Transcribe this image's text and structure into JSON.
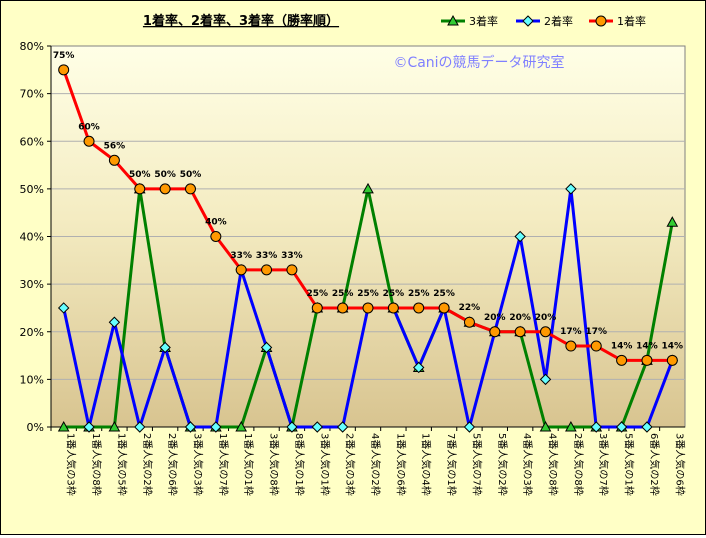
{
  "chart_data": {
    "type": "line",
    "title": "1着率、2着率、3着率（勝率順）",
    "watermark": "©Caniの競馬データ研究室",
    "ylim": [
      0,
      80
    ],
    "y_ticks": [
      "0%",
      "10%",
      "20%",
      "30%",
      "40%",
      "50%",
      "60%",
      "70%",
      "80%"
    ],
    "categories": [
      "1番人気の3枠",
      "1番人気の8枠",
      "1番人気の5枠",
      "2番人気の2枠",
      "2番人気の6枠",
      "3番人気の3枠",
      "1番人気の7枠",
      "1番人気の1枠",
      "3番人気の8枠",
      "8番人気の1枠",
      "3番人気の1枠",
      "2番人気の3枠",
      "4番人気の2枠",
      "1番人気の6枠",
      "1番人気の4枠",
      "7番人気の1枠",
      "5番人気の7枠",
      "5番人気の2枠",
      "4番人気の3枠",
      "4番人気の8枠",
      "2番人気の8枠",
      "3番人気の7枠",
      "5番人気の1枠",
      "6番人気の2枠",
      "3番人気の6枠"
    ],
    "series": [
      {
        "name": "3着率",
        "color": "#008000",
        "marker": "triangle",
        "fill": "#33CC33",
        "values": [
          0,
          0,
          0,
          50,
          16.7,
          0,
          0,
          0,
          16.7,
          0,
          25,
          25,
          50,
          25,
          12.5,
          25,
          22,
          20,
          20,
          0,
          0,
          0,
          0,
          14,
          43
        ]
      },
      {
        "name": "2着率",
        "color": "#0000FF",
        "marker": "diamond",
        "fill": "#66FFFF",
        "values": [
          25,
          0,
          22,
          0,
          16.7,
          0,
          0,
          33,
          16.7,
          0,
          0,
          0,
          25,
          25,
          12.5,
          25,
          0,
          20,
          40,
          10,
          50,
          0,
          0,
          0,
          14
        ]
      },
      {
        "name": "1着率",
        "color": "#FF0000",
        "marker": "circle",
        "fill": "#FF9900",
        "values": [
          75,
          60,
          56,
          50,
          50,
          50,
          40,
          33,
          33,
          33,
          25,
          25,
          25,
          25,
          25,
          25,
          22,
          20,
          20,
          20,
          17,
          17,
          14,
          14,
          14
        ]
      }
    ],
    "data_labels": [
      "75%",
      "60%",
      "56%",
      "50%",
      "50%",
      "50%",
      "40%",
      "33%",
      "33%",
      "33%",
      "25%",
      "25%",
      "25%",
      "25%",
      "25%",
      "25%",
      "22%",
      "20%",
      "20%",
      "20%",
      "17%",
      "17%",
      "14%",
      "14%",
      "14%"
    ],
    "grid": true,
    "legend": "top-right"
  }
}
